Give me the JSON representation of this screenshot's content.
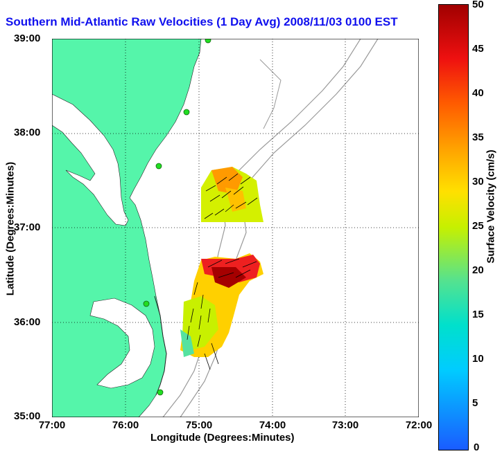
{
  "title": "Southern Mid-Atlantic Raw Velocities (1 Day Avg) 2008/11/03 0100 EST",
  "axes": {
    "xlabel": "Longitude (Degrees:Minutes)",
    "ylabel": "Latitude (Degrees:Minutes)",
    "x_ticks": [
      "77:00",
      "76:00",
      "75:00",
      "74:00",
      "73:00",
      "72:00"
    ],
    "y_ticks": [
      "39:00",
      "38:00",
      "37:00",
      "36:00",
      "35:00"
    ],
    "x_range": [
      -77,
      -72
    ],
    "y_range": [
      35,
      39
    ]
  },
  "colorbar": {
    "label": "Surface Velocity (cm/s)",
    "ticks": [
      "50",
      "45",
      "40",
      "35",
      "30",
      "25",
      "20",
      "15",
      "10",
      "5",
      "0"
    ],
    "range": [
      0,
      50
    ]
  },
  "colors": {
    "land": "#55f5aa",
    "title": "#1010ee",
    "bathymetry": "#999999",
    "station": "#22dd22"
  },
  "stations": [
    {
      "lon": -75.08,
      "lat": 38.99
    },
    {
      "lon": -75.15,
      "lat": 38.23
    },
    {
      "lon": -75.55,
      "lat": 37.57
    },
    {
      "lon": -75.7,
      "lat": 36.18
    },
    {
      "lon": -75.5,
      "lat": 35.27
    }
  ]
}
